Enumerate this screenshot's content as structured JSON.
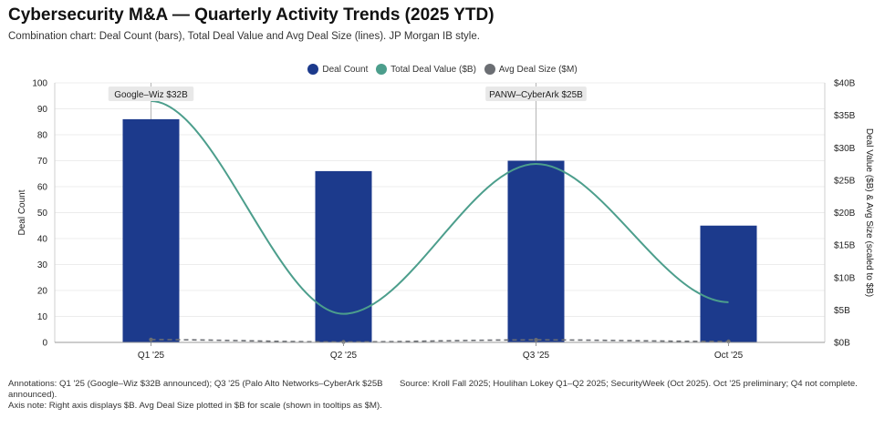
{
  "title": "Cybersecurity M&A — Quarterly Activity Trends (2025 YTD)",
  "subtitle": "Combination chart: Deal Count (bars), Total Deal Value and Avg Deal Size (lines). JP Morgan IB style.",
  "colors": {
    "bars": "#1c3a8c",
    "value_line": "#4c9e8c",
    "avg_line": "#6b6e73",
    "grid": "#ececec",
    "anno_bg": "#e8e8e8"
  },
  "chart_data": {
    "type": "bar",
    "categories": [
      "Q1 '25",
      "Q2 '25",
      "Q3 '25",
      "Oct '25"
    ],
    "series": [
      {
        "name": "Deal Count",
        "type": "bar",
        "axis": "left",
        "values": [
          86,
          66,
          70,
          45
        ]
      },
      {
        "name": "Total Deal Value ($B)",
        "type": "line",
        "axis": "right",
        "values": [
          37.2,
          4.4,
          27.5,
          6.2
        ]
      },
      {
        "name": "Avg Deal Size ($M)",
        "type": "line",
        "axis": "right",
        "values": [
          0.43,
          0.07,
          0.39,
          0.14
        ]
      }
    ],
    "ylabel": "Deal Count",
    "ylim": [
      0,
      100
    ],
    "yticks": [
      "0",
      "10",
      "20",
      "30",
      "40",
      "50",
      "60",
      "70",
      "80",
      "90",
      "100"
    ],
    "y2label": "Deal Value ($B) & Avg Size (scaled to $B)",
    "y2lim": [
      0,
      40
    ],
    "y2ticks": [
      "$0B",
      "$5B",
      "$10B",
      "$15B",
      "$20B",
      "$25B",
      "$30B",
      "$35B",
      "$40B"
    ],
    "grid": true,
    "legend": "top-center",
    "annotations": [
      {
        "category_index": 0,
        "label": "Google–Wiz $32B"
      },
      {
        "category_index": 2,
        "label": "PANW–CyberArk $25B"
      }
    ]
  },
  "footer": {
    "note_1": "Annotations: Q1 '25 (Google–Wiz $32B announced); Q3 '25 (Palo Alto Networks–CyberArk $25B announced).",
    "note_2": "Axis note: Right axis displays $B. Avg Deal Size plotted in $B for scale (shown in tooltips as $M).",
    "source": "Source: Kroll Fall 2025; Houlihan Lokey Q1–Q2 2025; SecurityWeek (Oct 2025). Oct '25 preliminary; Q4 not complete."
  }
}
